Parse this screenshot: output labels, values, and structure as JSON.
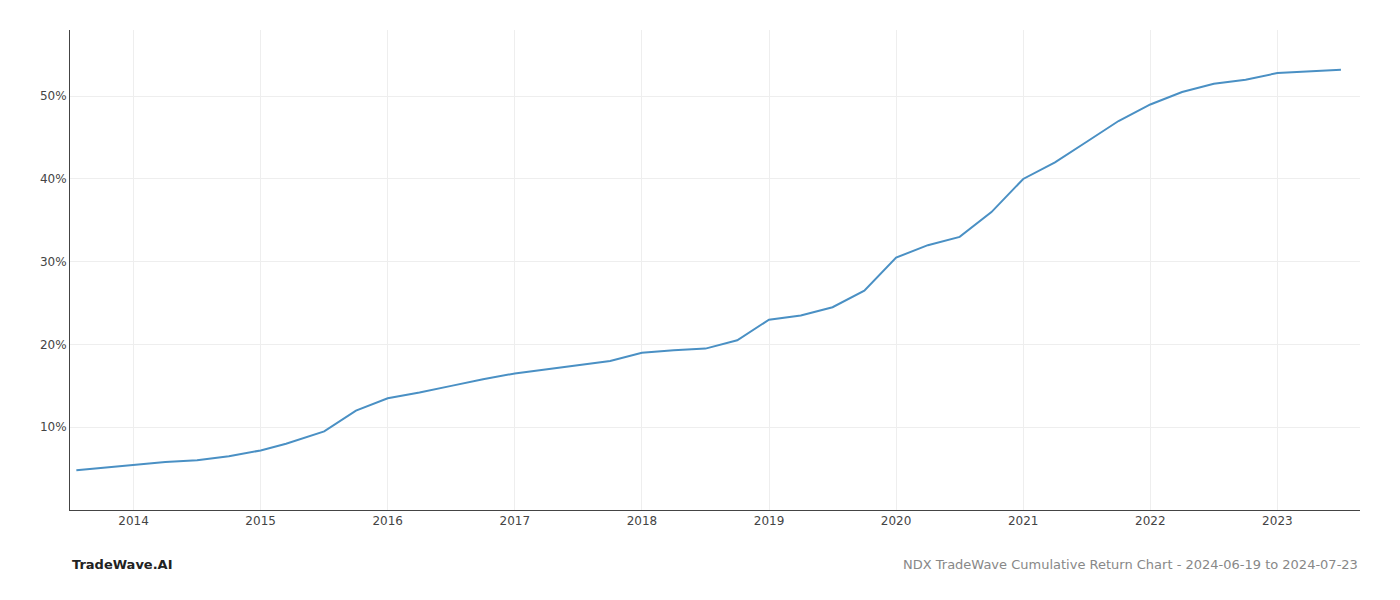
{
  "chart_data": {
    "type": "line",
    "title": "NDX TradeWave Cumulative Return Chart - 2024-06-19 to 2024-07-23",
    "annotations": [
      "TradeWave.AI"
    ],
    "x": [
      2013.55,
      2013.75,
      2014.0,
      2014.25,
      2014.5,
      2014.75,
      2015.0,
      2015.2,
      2015.5,
      2015.75,
      2016.0,
      2016.25,
      2016.5,
      2016.75,
      2017.0,
      2017.25,
      2017.5,
      2017.75,
      2018.0,
      2018.25,
      2018.5,
      2018.75,
      2019.0,
      2019.25,
      2019.5,
      2019.75,
      2020.0,
      2020.25,
      2020.5,
      2020.75,
      2021.0,
      2021.25,
      2021.5,
      2021.75,
      2022.0,
      2022.25,
      2022.5,
      2022.75,
      2023.0,
      2023.25,
      2023.5
    ],
    "values": [
      4.8,
      5.1,
      5.5,
      5.8,
      6.0,
      6.5,
      7.2,
      8.0,
      9.5,
      12.0,
      13.5,
      14.2,
      15.0,
      15.8,
      16.5,
      17.0,
      17.5,
      18.0,
      19.0,
      19.3,
      19.5,
      20.5,
      23.0,
      23.5,
      24.5,
      26.5,
      30.5,
      32.0,
      33.0,
      36.0,
      40.0,
      42.0,
      44.5,
      47.0,
      49.0,
      50.5,
      51.5,
      52.0,
      52.8,
      53.0,
      53.2
    ],
    "color": "#4a90c4",
    "xlim": [
      2013.5,
      2023.65
    ],
    "xticks": [
      2014,
      2015,
      2016,
      2017,
      2018,
      2019,
      2020,
      2021,
      2022,
      2023
    ],
    "ylim": [
      0,
      58
    ],
    "yticks": [
      {
        "value": 10,
        "label": "10%"
      },
      {
        "value": 20,
        "label": "20%"
      },
      {
        "value": 30,
        "label": "30%"
      },
      {
        "value": 40,
        "label": "40%"
      },
      {
        "value": 50,
        "label": "50%"
      }
    ],
    "grid": true
  }
}
